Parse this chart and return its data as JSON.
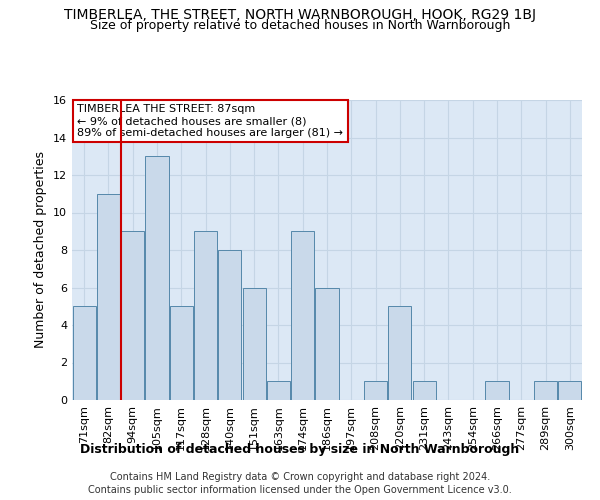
{
  "title": "TIMBERLEA, THE STREET, NORTH WARNBOROUGH, HOOK, RG29 1BJ",
  "subtitle": "Size of property relative to detached houses in North Warnborough",
  "xlabel_bottom": "Distribution of detached houses by size in North Warnborough",
  "ylabel": "Number of detached properties",
  "footnote1": "Contains HM Land Registry data © Crown copyright and database right 2024.",
  "footnote2": "Contains public sector information licensed under the Open Government Licence v3.0.",
  "categories": [
    "71sqm",
    "82sqm",
    "94sqm",
    "105sqm",
    "117sqm",
    "128sqm",
    "140sqm",
    "151sqm",
    "163sqm",
    "174sqm",
    "186sqm",
    "197sqm",
    "208sqm",
    "220sqm",
    "231sqm",
    "243sqm",
    "254sqm",
    "266sqm",
    "277sqm",
    "289sqm",
    "300sqm"
  ],
  "values": [
    5,
    11,
    9,
    13,
    5,
    9,
    8,
    6,
    1,
    9,
    6,
    0,
    1,
    5,
    1,
    0,
    0,
    1,
    0,
    1,
    1
  ],
  "bar_color": "#c9d9ea",
  "bar_edge_color": "#5588aa",
  "grid_color": "#c5d5e5",
  "background_color": "#dce8f5",
  "vline_x": 1.5,
  "vline_color": "#cc0000",
  "annotation_line1": "TIMBERLEA THE STREET: 87sqm",
  "annotation_line2": "← 9% of detached houses are smaller (8)",
  "annotation_line3": "89% of semi-detached houses are larger (81) →",
  "annotation_box_color": "#ffffff",
  "annotation_border_color": "#cc0000",
  "ylim": [
    0,
    16
  ],
  "yticks": [
    0,
    2,
    4,
    6,
    8,
    10,
    12,
    14,
    16
  ],
  "title_fontsize": 10,
  "subtitle_fontsize": 9,
  "ylabel_fontsize": 9,
  "tick_fontsize": 8,
  "annot_fontsize": 8,
  "xlabel_bottom_fontsize": 9,
  "footnote_fontsize": 7
}
